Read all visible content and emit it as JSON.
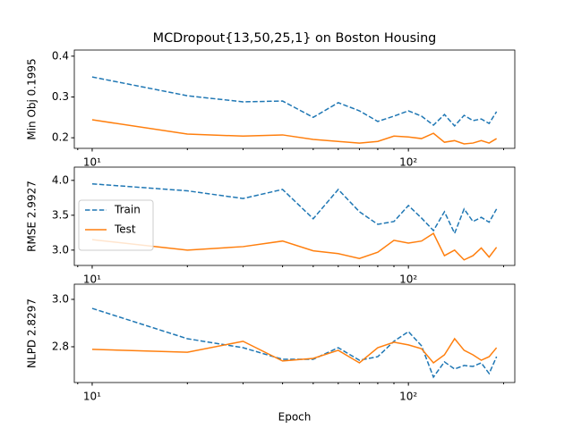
{
  "chart_data": [
    {
      "type": "line",
      "title": "MCDropout{13,50,25,1} on Boston Housing",
      "ylabel": "Min Obj 0.1995",
      "x": [
        10,
        20,
        30,
        40,
        50,
        60,
        70,
        80,
        90,
        100,
        110,
        120,
        130,
        140,
        150,
        160,
        170,
        180,
        190
      ],
      "series": [
        {
          "color": "#1f77b4",
          "dash": true,
          "values": [
            0.349,
            0.303,
            0.288,
            0.29,
            0.25,
            0.286,
            0.266,
            0.24,
            0.253,
            0.266,
            0.253,
            0.231,
            0.257,
            0.229,
            0.255,
            0.242,
            0.246,
            0.235,
            0.264
          ]
        },
        {
          "color": "#ff7f0e",
          "dash": false,
          "values": [
            0.244,
            0.209,
            0.204,
            0.207,
            0.196,
            0.191,
            0.187,
            0.191,
            0.204,
            0.202,
            0.198,
            0.211,
            0.189,
            0.193,
            0.185,
            0.187,
            0.193,
            0.187,
            0.198
          ]
        }
      ],
      "xscale": "log",
      "xlim": [
        8.78,
        217
      ],
      "xticks": [
        {
          "value": 10,
          "label": "10¹"
        },
        {
          "value": 100,
          "label": "10²"
        }
      ],
      "xminorticks": [
        9,
        20,
        30,
        40,
        50,
        60,
        70,
        80,
        90,
        200
      ],
      "ylim": [
        0.174,
        0.415
      ],
      "yticks": [
        0.2,
        0.3,
        0.4
      ]
    },
    {
      "type": "line",
      "ylabel": "RMSE 2.9927",
      "x": [
        10,
        20,
        30,
        40,
        50,
        60,
        70,
        80,
        90,
        100,
        110,
        120,
        130,
        140,
        150,
        160,
        170,
        180,
        190
      ],
      "series": [
        {
          "name": "Train",
          "color": "#1f77b4",
          "dash": true,
          "values": [
            3.95,
            3.85,
            3.74,
            3.87,
            3.45,
            3.87,
            3.55,
            3.37,
            3.41,
            3.64,
            3.46,
            3.28,
            3.55,
            3.24,
            3.59,
            3.41,
            3.47,
            3.4,
            3.59
          ]
        },
        {
          "name": "Test",
          "color": "#ff7f0e",
          "dash": false,
          "values": [
            3.15,
            3.0,
            3.05,
            3.13,
            2.99,
            2.95,
            2.88,
            2.97,
            3.14,
            3.1,
            3.13,
            3.24,
            2.92,
            3.0,
            2.86,
            2.92,
            3.03,
            2.9,
            3.04
          ]
        }
      ],
      "legend": "center left",
      "xscale": "log",
      "xlim": [
        8.78,
        217
      ],
      "xticks": [
        {
          "value": 10,
          "label": "10¹"
        },
        {
          "value": 100,
          "label": "10²"
        }
      ],
      "xminorticks": [
        9,
        20,
        30,
        40,
        50,
        60,
        70,
        80,
        90,
        200
      ],
      "ylim": [
        2.78,
        4.19
      ],
      "yticks": [
        {
          "value": 3,
          "label": "3.0"
        },
        3.5,
        {
          "value": 4,
          "label": "4.0"
        }
      ]
    },
    {
      "type": "line",
      "ylabel": "NLPD 2.8297",
      "xlabel": "Epoch",
      "x": [
        10,
        20,
        30,
        40,
        50,
        60,
        70,
        80,
        90,
        100,
        110,
        120,
        130,
        140,
        150,
        160,
        170,
        180,
        190
      ],
      "series": [
        {
          "color": "#1f77b4",
          "dash": true,
          "values": [
            2.962,
            2.834,
            2.796,
            2.747,
            2.747,
            2.796,
            2.743,
            2.758,
            2.823,
            2.864,
            2.804,
            2.672,
            2.736,
            2.706,
            2.721,
            2.717,
            2.732,
            2.687,
            2.758
          ]
        },
        {
          "color": "#ff7f0e",
          "dash": false,
          "values": [
            2.789,
            2.777,
            2.823,
            2.74,
            2.751,
            2.785,
            2.732,
            2.796,
            2.819,
            2.808,
            2.792,
            2.732,
            2.766,
            2.834,
            2.785,
            2.766,
            2.743,
            2.758,
            2.796
          ]
        }
      ],
      "xscale": "log",
      "xlim": [
        8.78,
        217
      ],
      "xticks": [
        {
          "value": 10,
          "label": "10¹"
        },
        {
          "value": 100,
          "label": "10²"
        }
      ],
      "xminorticks": [
        9,
        20,
        30,
        40,
        50,
        60,
        70,
        80,
        90,
        200
      ],
      "ylim": [
        2.649,
        3.064
      ],
      "yticks": [
        2.8,
        {
          "value": 3,
          "label": "3.0"
        }
      ]
    }
  ]
}
